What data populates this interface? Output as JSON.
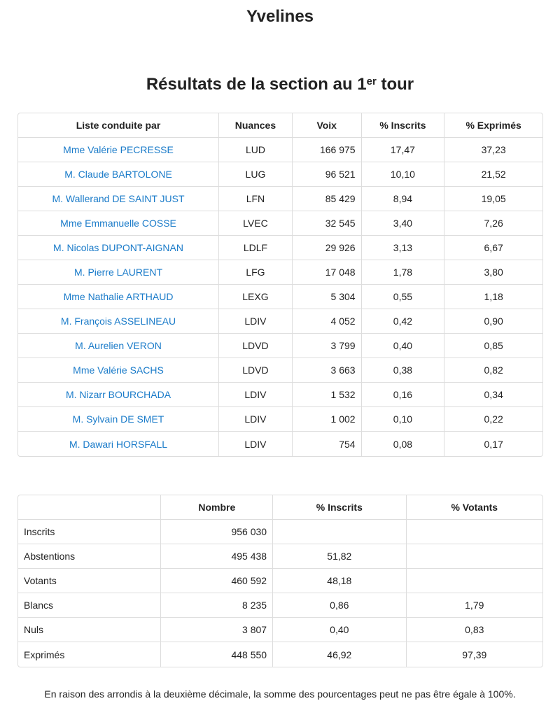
{
  "page_title": "Yvelines",
  "section_title": {
    "text": "Résultats de la section au 1",
    "sup": "er",
    "suffix": " tour"
  },
  "results": {
    "headers": [
      "Liste conduite par",
      "Nuances",
      "Voix",
      "% Inscrits",
      "% Exprimés"
    ],
    "rows": [
      [
        "Mme Valérie PECRESSE",
        "LUD",
        "166 975",
        "17,47",
        "37,23"
      ],
      [
        "M. Claude BARTOLONE",
        "LUG",
        "96 521",
        "10,10",
        "21,52"
      ],
      [
        "M. Wallerand DE SAINT JUST",
        "LFN",
        "85 429",
        "8,94",
        "19,05"
      ],
      [
        "Mme Emmanuelle COSSE",
        "LVEC",
        "32 545",
        "3,40",
        "7,26"
      ],
      [
        "M. Nicolas DUPONT-AIGNAN",
        "LDLF",
        "29 926",
        "3,13",
        "6,67"
      ],
      [
        "M. Pierre LAURENT",
        "LFG",
        "17 048",
        "1,78",
        "3,80"
      ],
      [
        "Mme Nathalie ARTHAUD",
        "LEXG",
        "5 304",
        "0,55",
        "1,18"
      ],
      [
        "M. François ASSELINEAU",
        "LDIV",
        "4 052",
        "0,42",
        "0,90"
      ],
      [
        "M. Aurelien VERON",
        "LDVD",
        "3 799",
        "0,40",
        "0,85"
      ],
      [
        "Mme Valérie SACHS",
        "LDVD",
        "3 663",
        "0,38",
        "0,82"
      ],
      [
        "M. Nizarr BOURCHADA",
        "LDIV",
        "1 532",
        "0,16",
        "0,34"
      ],
      [
        "M. Sylvain DE SMET",
        "LDIV",
        "1 002",
        "0,10",
        "0,22"
      ],
      [
        "M. Dawari HORSFALL",
        "LDIV",
        "754",
        "0,08",
        "0,17"
      ]
    ]
  },
  "summary": {
    "headers": [
      "",
      "Nombre",
      "% Inscrits",
      "% Votants"
    ],
    "rows": [
      [
        "Inscrits",
        "956 030",
        "",
        ""
      ],
      [
        "Abstentions",
        "495 438",
        "51,82",
        ""
      ],
      [
        "Votants",
        "460 592",
        "48,18",
        ""
      ],
      [
        "Blancs",
        "8 235",
        "0,86",
        "1,79"
      ],
      [
        "Nuls",
        "3 807",
        "0,40",
        "0,83"
      ],
      [
        "Exprimés",
        "448 550",
        "46,92",
        "97,39"
      ]
    ]
  },
  "note": "En raison des arrondis à la deuxième décimale, la somme des pourcentages peut ne pas être égale à 100%.",
  "colors": {
    "link": "#1a7bc9",
    "border": "#dddddd"
  }
}
